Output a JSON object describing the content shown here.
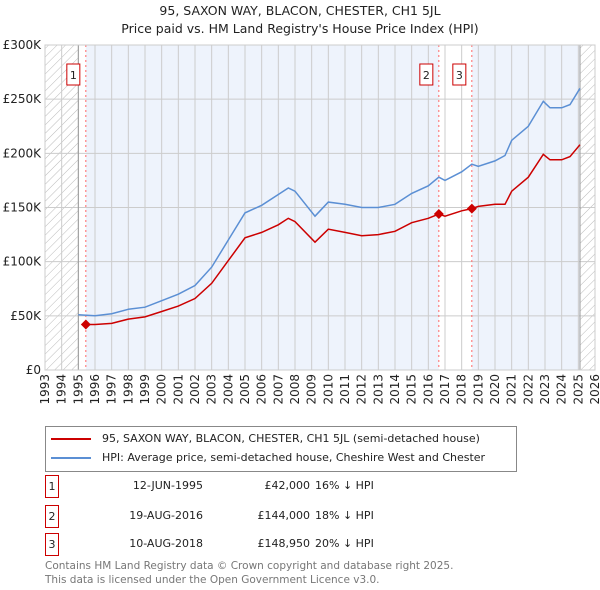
{
  "chart_data": {
    "type": "line",
    "title": "95, SAXON WAY, BLACON, CHESTER, CH1 5JL",
    "subtitle": "Price paid vs. HM Land Registry's House Price Index (HPI)",
    "xlim": [
      1993,
      2026
    ],
    "ylim": [
      0,
      300000
    ],
    "y_ticks": [
      {
        "v": 0,
        "label": "£0"
      },
      {
        "v": 50000,
        "label": "£50K"
      },
      {
        "v": 100000,
        "label": "£100K"
      },
      {
        "v": 150000,
        "label": "£150K"
      },
      {
        "v": 200000,
        "label": "£200K"
      },
      {
        "v": 250000,
        "label": "£250K"
      },
      {
        "v": 300000,
        "label": "£300K"
      }
    ],
    "x_ticks": [
      "1993",
      "1994",
      "1995",
      "1996",
      "1997",
      "1998",
      "1999",
      "2000",
      "2001",
      "2002",
      "2003",
      "2004",
      "2005",
      "2006",
      "2007",
      "2008",
      "2009",
      "2010",
      "2011",
      "2012",
      "2013",
      "2014",
      "2015",
      "2016",
      "2017",
      "2018",
      "2019",
      "2020",
      "2021",
      "2022",
      "2023",
      "2024",
      "2025",
      "2026"
    ],
    "grid": true,
    "series": [
      {
        "name": "95, SAXON WAY, BLACON, CHESTER, CH1 5JL (semi-detached house)",
        "color": "#cc0000",
        "x": [
          1995.45,
          1996,
          1997,
          1998,
          1999,
          2000,
          2001,
          2002,
          2003,
          2004,
          2005,
          2006,
          2007,
          2007.6,
          2008,
          2009.2,
          2010,
          2011,
          2012,
          2013,
          2014,
          2015,
          2016,
          2016.63,
          2017,
          2018,
          2018.61,
          2019,
          2020,
          2020.6,
          2021,
          2022,
          2022.9,
          2023.3,
          2024,
          2024.5,
          2025.1
        ],
        "y": [
          42000,
          42000,
          43000,
          47000,
          49000,
          54000,
          59000,
          66000,
          80000,
          101000,
          122000,
          127000,
          134000,
          140000,
          137000,
          118000,
          130000,
          127000,
          124000,
          125000,
          128000,
          136000,
          140000,
          144000,
          142000,
          147000,
          148950,
          151000,
          153000,
          153000,
          165000,
          178000,
          199000,
          194000,
          194000,
          197000,
          208000
        ]
      },
      {
        "name": "HPI: Average price, semi-detached house, Cheshire West and Chester",
        "color": "#5b8fd4",
        "x": [
          1995,
          1996,
          1997,
          1998,
          1999,
          2000,
          2001,
          2002,
          2003,
          2004,
          2005,
          2006,
          2007,
          2007.6,
          2008,
          2009.2,
          2010,
          2011,
          2012,
          2013,
          2014,
          2015,
          2016,
          2016.63,
          2017,
          2018,
          2018.61,
          2019,
          2020,
          2020.6,
          2021,
          2022,
          2022.9,
          2023.3,
          2024,
          2024.5,
          2025.1
        ],
        "y": [
          51000,
          50000,
          52000,
          56000,
          58000,
          64000,
          70000,
          78000,
          95000,
          120000,
          145000,
          152000,
          162000,
          168000,
          165000,
          142000,
          155000,
          153000,
          150000,
          150000,
          153000,
          163000,
          170000,
          178000,
          175000,
          183000,
          190000,
          188000,
          193000,
          198000,
          212000,
          225000,
          248000,
          242000,
          242000,
          245000,
          260000
        ]
      }
    ],
    "sales": [
      {
        "num": "1",
        "x": 1995.45,
        "y": 42000,
        "date": "12-JUN-1995",
        "price": "£42,000",
        "hpi": "16% ↓ HPI"
      },
      {
        "num": "2",
        "x": 2016.63,
        "y": 144000,
        "date": "19-AUG-2016",
        "price": "£144,000",
        "hpi": "18% ↓ HPI"
      },
      {
        "num": "3",
        "x": 2018.61,
        "y": 148950,
        "date": "10-AUG-2018",
        "price": "£148,950",
        "hpi": "20% ↓ HPI"
      }
    ],
    "legend_position": "below"
  },
  "footer": {
    "line1": "Contains HM Land Registry data © Crown copyright and database right 2025.",
    "line2": "This data is licensed under the Open Government Licence v3.0."
  }
}
